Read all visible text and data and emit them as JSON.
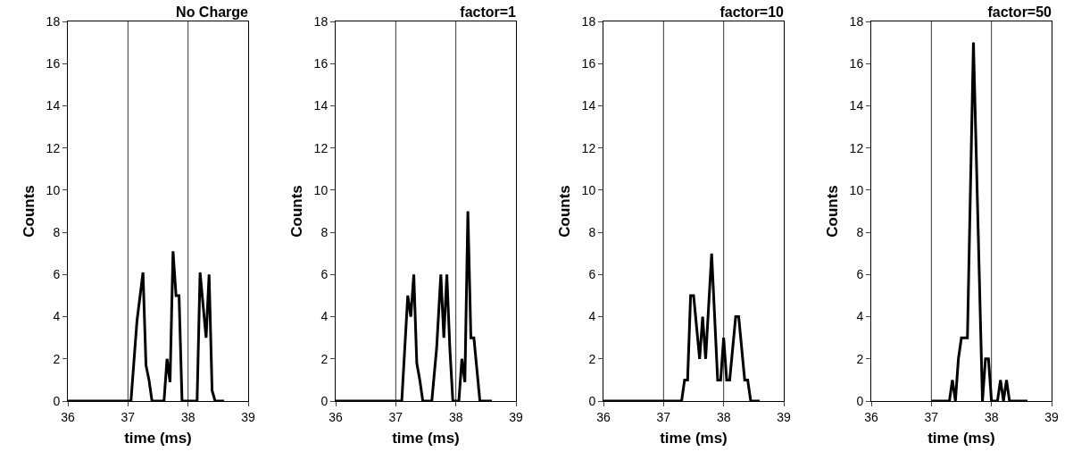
{
  "chart_data": [
    {
      "type": "line",
      "title": "No Charge",
      "xlabel": "time (ms)",
      "ylabel": "Counts",
      "xlim": [
        36,
        39
      ],
      "xticks": [
        36,
        37,
        38,
        39
      ],
      "ylim": [
        0,
        18
      ],
      "yticks": [
        0,
        2,
        4,
        6,
        8,
        10,
        12,
        14,
        16,
        18
      ],
      "grid": false,
      "marker": "none",
      "line_style": "solid",
      "ref_lines": [
        {
          "axis": "x",
          "value": 37,
          "color": "#000000"
        },
        {
          "axis": "x",
          "value": 38,
          "color": "#000000"
        }
      ],
      "series": [
        {
          "color": "#000000",
          "x": [
            36,
            37,
            37.05,
            37.15,
            37.25,
            37.3,
            37.35,
            37.4,
            37.6,
            37.65,
            37.7,
            37.75,
            37.8,
            37.85,
            37.9,
            38.15,
            38.2,
            38.3,
            38.35,
            38.4,
            38.45,
            38.6
          ],
          "values": [
            0,
            0,
            0,
            3.8,
            6.1,
            1.7,
            1,
            0,
            0,
            2,
            0.9,
            7.1,
            5,
            5,
            0,
            0,
            6.1,
            3,
            6,
            0.5,
            0,
            0
          ]
        }
      ]
    },
    {
      "type": "line",
      "title": "factor=1",
      "xlabel": "time (ms)",
      "ylabel": "Counts",
      "xlim": [
        36,
        39
      ],
      "xticks": [
        36,
        37,
        38,
        39
      ],
      "ylim": [
        0,
        18
      ],
      "yticks": [
        0,
        2,
        4,
        6,
        8,
        10,
        12,
        14,
        16,
        18
      ],
      "grid": false,
      "marker": "none",
      "line_style": "solid",
      "ref_lines": [
        {
          "axis": "x",
          "value": 37,
          "color": "#000000"
        },
        {
          "axis": "x",
          "value": 38,
          "color": "#000000"
        }
      ],
      "series": [
        {
          "color": "#000000",
          "x": [
            36,
            37.1,
            37.15,
            37.2,
            37.25,
            37.3,
            37.35,
            37.4,
            37.45,
            37.6,
            37.68,
            37.75,
            37.8,
            37.85,
            37.9,
            37.95,
            38.05,
            38.1,
            38.15,
            38.2,
            38.25,
            38.3,
            38.35,
            38.4,
            38.6
          ],
          "values": [
            0,
            0,
            2.5,
            5,
            4,
            6,
            1.8,
            1,
            0,
            0,
            2.5,
            6,
            3,
            6,
            2.5,
            0,
            0,
            2,
            0.9,
            9,
            3,
            3,
            1.5,
            0,
            0
          ]
        }
      ]
    },
    {
      "type": "line",
      "title": "factor=10",
      "xlabel": "time (ms)",
      "ylabel": "Counts",
      "xlim": [
        36,
        39
      ],
      "xticks": [
        36,
        37,
        38,
        39
      ],
      "ylim": [
        0,
        18
      ],
      "yticks": [
        0,
        2,
        4,
        6,
        8,
        10,
        12,
        14,
        16,
        18
      ],
      "grid": false,
      "marker": "none",
      "line_style": "solid",
      "ref_lines": [
        {
          "axis": "x",
          "value": 37,
          "color": "#000000"
        },
        {
          "axis": "x",
          "value": 38,
          "color": "#000000"
        }
      ],
      "series": [
        {
          "color": "#000000",
          "x": [
            36,
            37,
            37.3,
            37.35,
            37.4,
            37.45,
            37.5,
            37.6,
            37.65,
            37.7,
            37.8,
            37.9,
            37.95,
            38,
            38.05,
            38.1,
            38.2,
            38.25,
            38.35,
            38.4,
            38.45,
            38.6
          ],
          "values": [
            0,
            0,
            0,
            1,
            1,
            5,
            5,
            2,
            4,
            2,
            7,
            1,
            1,
            3,
            1,
            1,
            4,
            4,
            1,
            1,
            0,
            0
          ]
        }
      ]
    },
    {
      "type": "line",
      "title": "factor=50",
      "xlabel": "time (ms)",
      "ylabel": "Counts",
      "xlim": [
        36,
        39
      ],
      "xticks": [
        36,
        37,
        38,
        39
      ],
      "ylim": [
        0,
        18
      ],
      "yticks": [
        0,
        2,
        4,
        6,
        8,
        10,
        12,
        14,
        16,
        18
      ],
      "grid": false,
      "marker": "none",
      "line_style": "solid",
      "ref_lines": [
        {
          "axis": "x",
          "value": 37,
          "color": "#000000"
        },
        {
          "axis": "x",
          "value": 38,
          "color": "#000000"
        }
      ],
      "series": [
        {
          "color": "#000000",
          "x": [
            37,
            37.3,
            37.35,
            37.4,
            37.45,
            37.5,
            37.6,
            37.7,
            37.85,
            37.9,
            37.95,
            38,
            38.1,
            38.15,
            38.2,
            38.25,
            38.3,
            38.6
          ],
          "values": [
            0,
            0,
            1,
            0,
            2,
            3,
            3,
            17,
            0,
            2,
            2,
            0,
            0,
            1,
            0,
            1,
            0,
            0
          ]
        }
      ]
    }
  ]
}
